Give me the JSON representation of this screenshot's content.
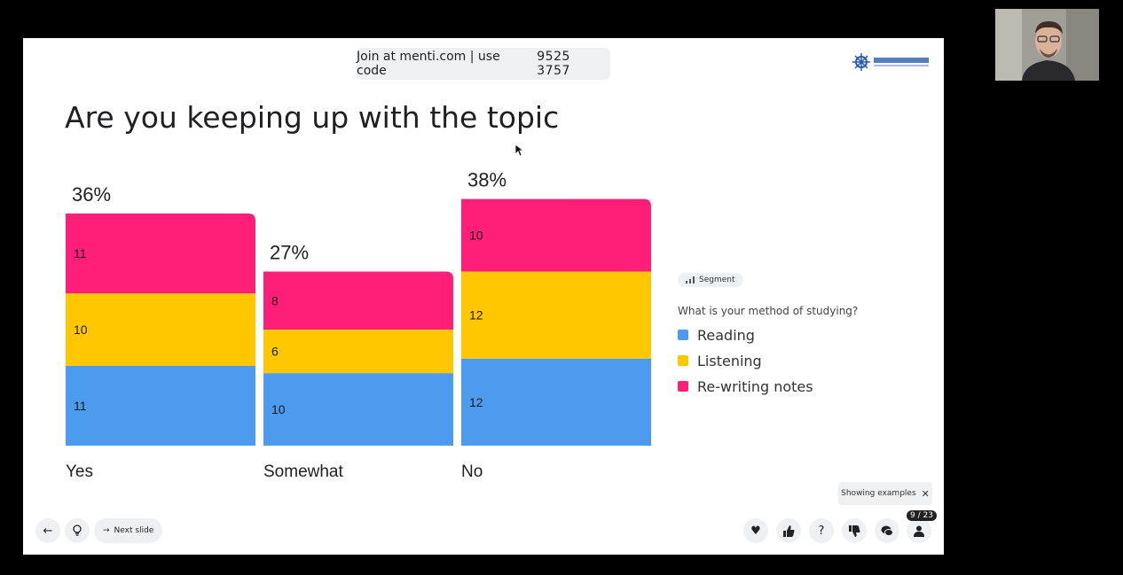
{
  "banner": {
    "join_text": "Join at menti.com | use code",
    "code": "9525 3757"
  },
  "title": "Are you keeping up with the topic",
  "chart_data": {
    "type": "bar",
    "stacked": true,
    "categories": [
      "Yes",
      "Somewhat",
      "No"
    ],
    "percentages": [
      "36%",
      "27%",
      "38%"
    ],
    "series": [
      {
        "name": "Reading",
        "color": "#4c9bef",
        "values": [
          11,
          10,
          12
        ]
      },
      {
        "name": "Listening",
        "color": "#ffc700",
        "values": [
          10,
          6,
          12
        ]
      },
      {
        "name": "Re-writing notes",
        "color": "#ff1f78",
        "values": [
          11,
          8,
          10
        ]
      }
    ]
  },
  "legend": {
    "segment_label": "Segment",
    "question": "What is your method of studying?",
    "items": [
      "Reading",
      "Listening",
      "Re-writing notes"
    ]
  },
  "examples_label": "Showing examples",
  "nav": {
    "next_label": "Next slide"
  },
  "counter": "9 / 23"
}
